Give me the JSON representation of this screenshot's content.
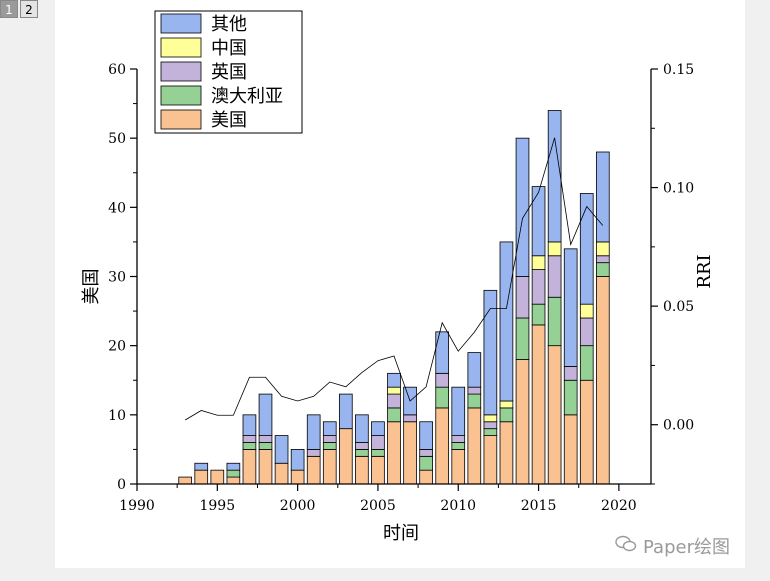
{
  "tabs": [
    {
      "label": "1",
      "active": true
    },
    {
      "label": "2",
      "active": false
    }
  ],
  "watermark": {
    "text": "Paper绘图"
  },
  "chart_data": {
    "type": "bar",
    "stacked": true,
    "xlabel": "时间",
    "ylabel": "美国",
    "y2label": "RRI",
    "xlim": [
      1990,
      2022
    ],
    "ylim": [
      0,
      60
    ],
    "y2lim": [
      -0.025,
      0.15
    ],
    "xticks": [
      1990,
      1995,
      2000,
      2005,
      2010,
      2015,
      2020
    ],
    "yticks": [
      0,
      10,
      20,
      30,
      40,
      50,
      60
    ],
    "y2ticks": [
      "0.00",
      "0.05",
      "0.10",
      "0.15"
    ],
    "y2tick_values": [
      0.0,
      0.05,
      0.1,
      0.15
    ],
    "legend_position": "top-left",
    "years": [
      1993,
      1994,
      1995,
      1996,
      1997,
      1998,
      1999,
      2000,
      2001,
      2002,
      2003,
      2004,
      2005,
      2006,
      2007,
      2008,
      2009,
      2010,
      2011,
      2012,
      2013,
      2014,
      2015,
      2016,
      2017,
      2018,
      2019
    ],
    "series": [
      {
        "name": "美国",
        "color": "#fbc291",
        "values": [
          1,
          2,
          2,
          1,
          5,
          5,
          3,
          2,
          4,
          5,
          8,
          4,
          4,
          9,
          9,
          2,
          11,
          5,
          11,
          7,
          9,
          18,
          23,
          20,
          10,
          15,
          30
        ]
      },
      {
        "name": "澳大利亚",
        "color": "#95d195",
        "values": [
          0,
          0,
          0,
          1,
          1,
          1,
          0,
          0,
          0,
          1,
          0,
          1,
          1,
          2,
          0,
          2,
          3,
          1,
          2,
          1,
          2,
          6,
          3,
          7,
          5,
          5,
          2
        ]
      },
      {
        "name": "英国",
        "color": "#c3b3db",
        "values": [
          0,
          0,
          0,
          0,
          1,
          1,
          0,
          0,
          1,
          1,
          0,
          1,
          2,
          2,
          1,
          1,
          2,
          1,
          1,
          1,
          0,
          6,
          5,
          6,
          2,
          4,
          1
        ]
      },
      {
        "name": "中国",
        "color": "#ffff99",
        "values": [
          0,
          0,
          0,
          0,
          0,
          0,
          0,
          0,
          0,
          0,
          0,
          0,
          0,
          1,
          0,
          0,
          0,
          0,
          0,
          1,
          1,
          0,
          2,
          2,
          0,
          2,
          2
        ]
      },
      {
        "name": "其他",
        "color": "#98b5ef",
        "values": [
          0,
          1,
          0,
          1,
          3,
          6,
          4,
          3,
          5,
          2,
          5,
          4,
          2,
          2,
          4,
          4,
          6,
          7,
          5,
          18,
          23,
          20,
          10,
          19,
          17,
          16,
          13
        ]
      }
    ],
    "line": {
      "name": "RRI",
      "values": [
        0.002,
        0.006,
        0.004,
        0.004,
        0.02,
        0.02,
        0.012,
        0.01,
        0.012,
        0.018,
        0.016,
        0.022,
        0.027,
        0.029,
        0.01,
        0.016,
        0.043,
        0.031,
        0.039,
        0.049,
        0.049,
        0.087,
        0.098,
        0.121,
        0.076,
        0.092,
        0.084
      ]
    }
  }
}
